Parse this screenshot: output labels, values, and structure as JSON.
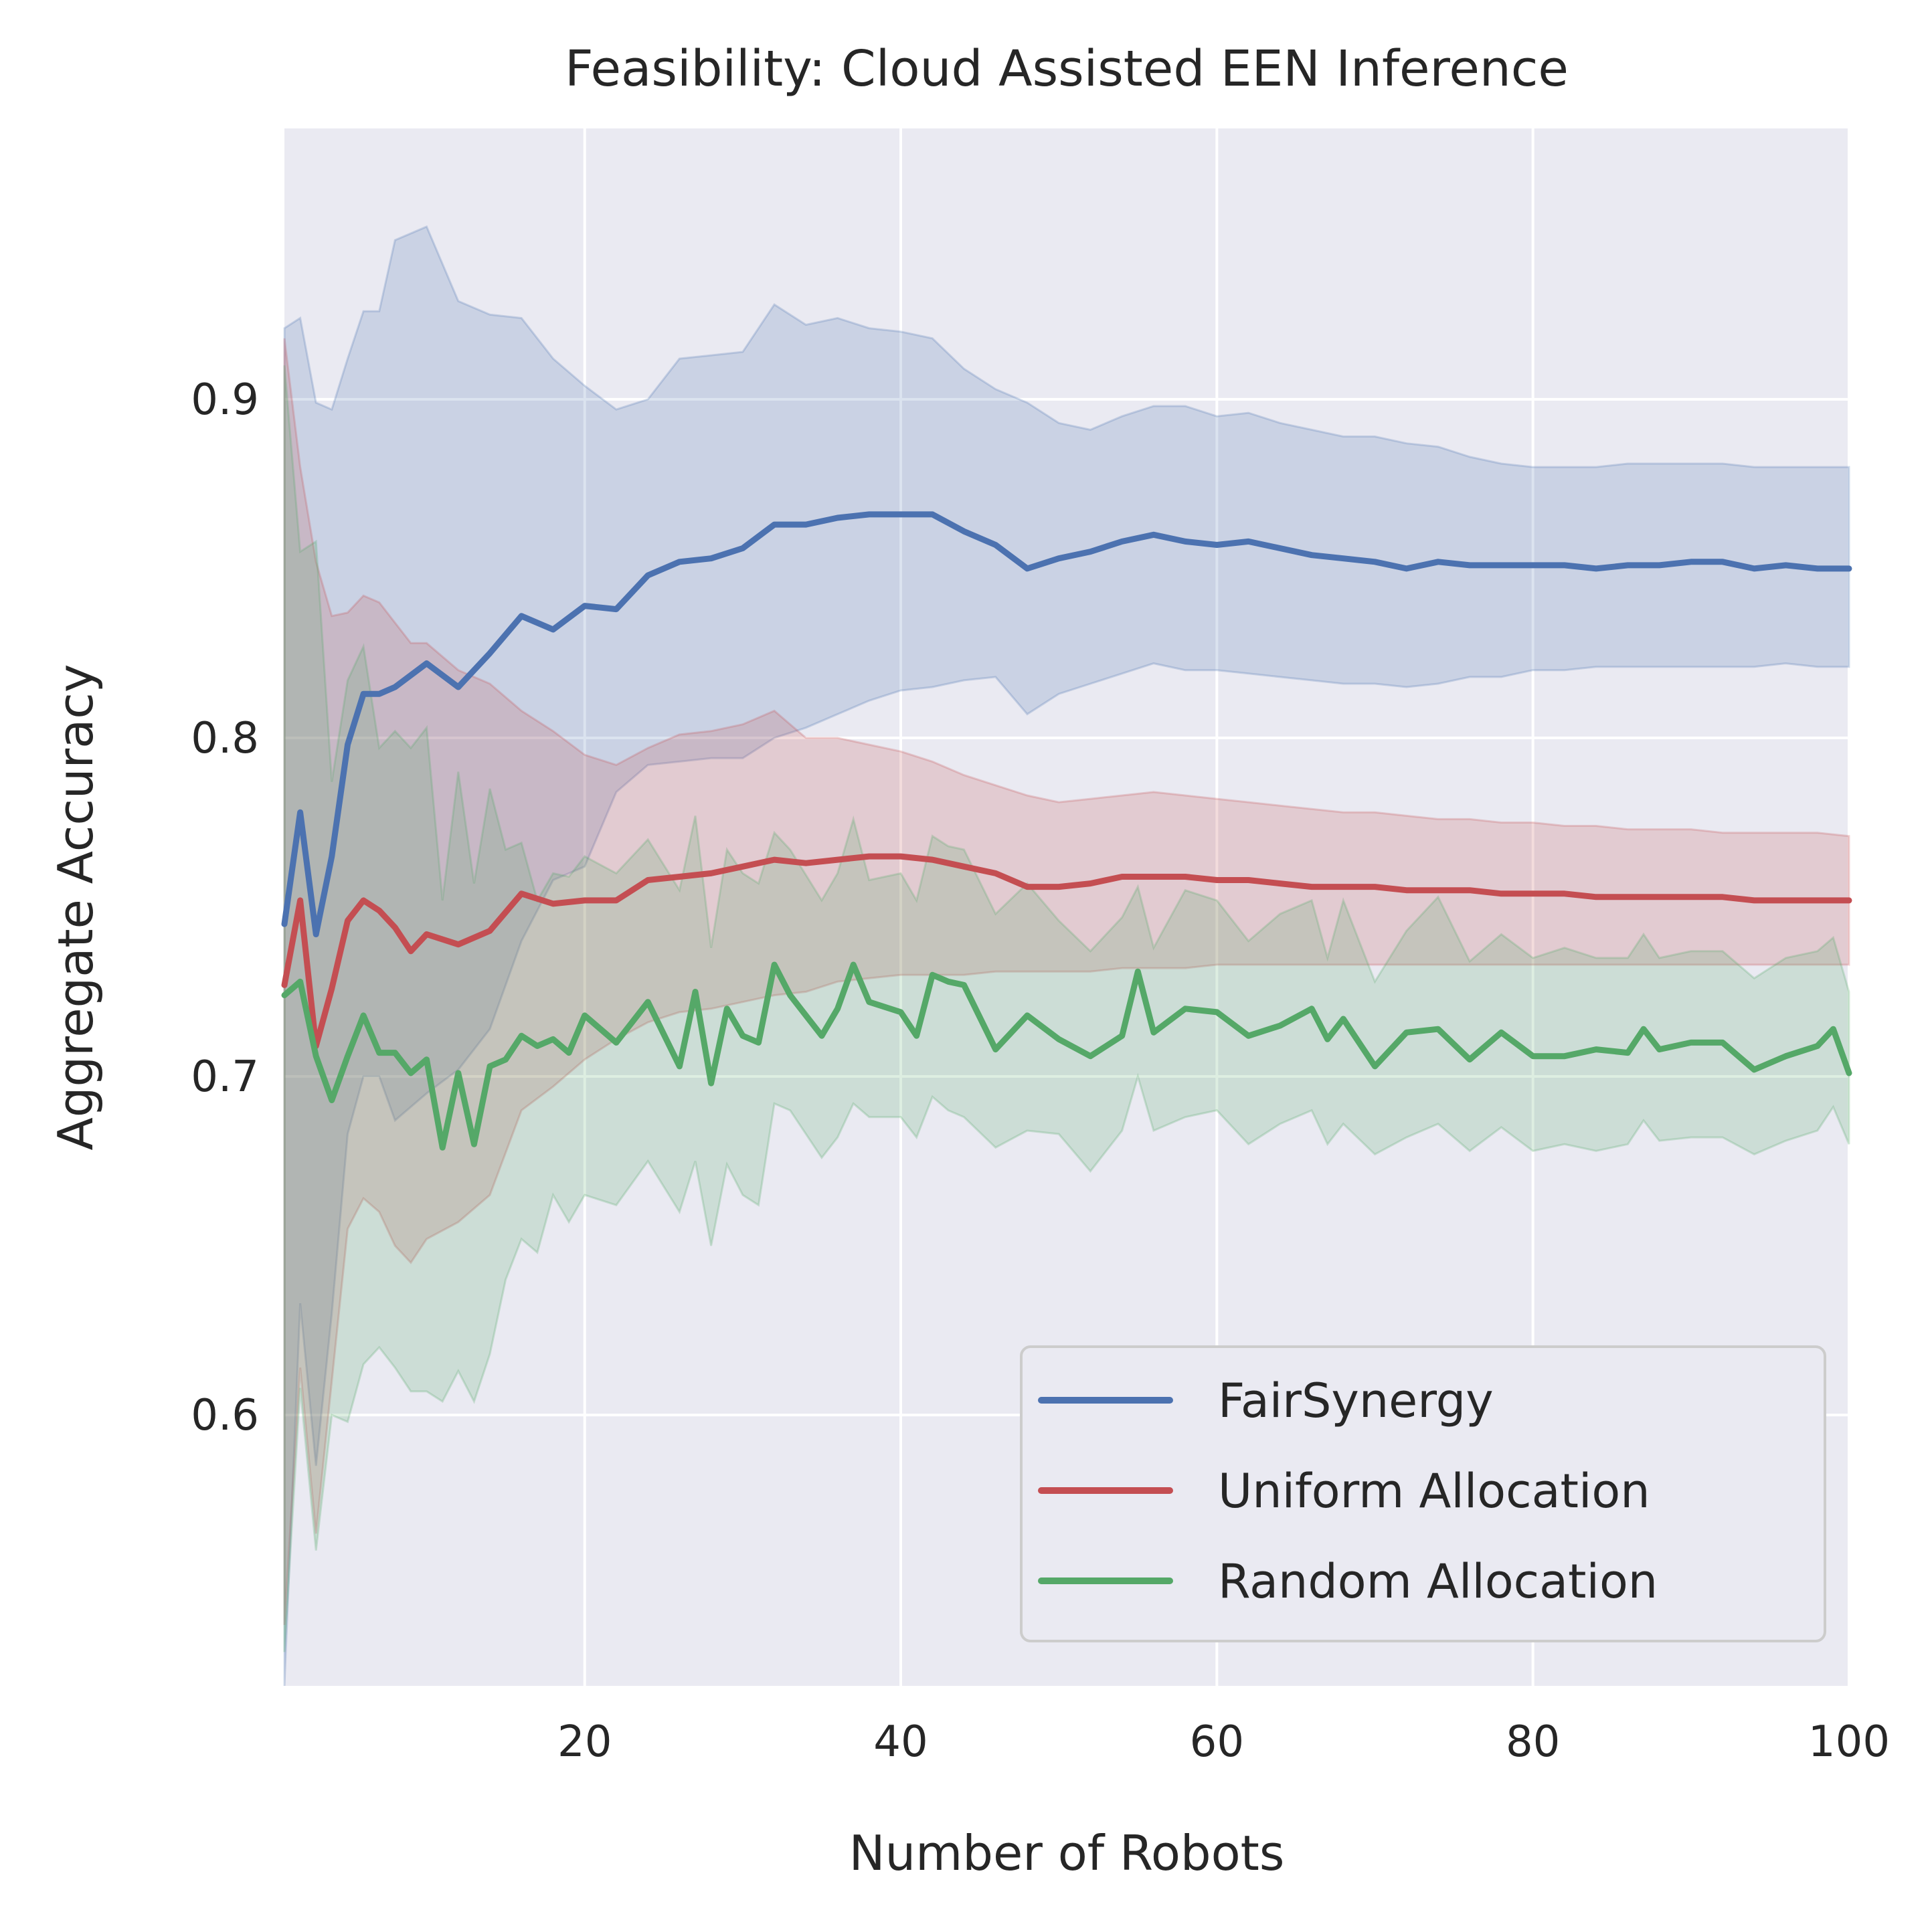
{
  "chart_data": {
    "type": "line",
    "title": "Feasibility: Cloud Assisted EEN Inference",
    "xlabel": "Number of Robots",
    "ylabel": "Aggregate Accuracy",
    "xlim": [
      1,
      100
    ],
    "ylim": [
      0.52,
      0.98
    ],
    "xticks": [
      20,
      40,
      60,
      80,
      100
    ],
    "yticks": [
      0.6,
      0.7,
      0.8,
      0.9
    ],
    "grid": true,
    "background_color": "#eaeaf2",
    "legend_position": "lower-right",
    "series": [
      {
        "name": "FairSynergy",
        "color": "#4c72b0",
        "x": [
          1,
          2,
          3,
          4,
          5,
          6,
          7,
          8,
          10,
          12,
          14,
          16,
          18,
          20,
          22,
          24,
          26,
          28,
          30,
          32,
          34,
          36,
          38,
          40,
          42,
          44,
          46,
          48,
          50,
          52,
          54,
          56,
          58,
          60,
          62,
          64,
          66,
          68,
          70,
          72,
          74,
          76,
          78,
          80,
          82,
          84,
          86,
          88,
          90,
          92,
          94,
          96,
          98,
          100
        ],
        "mean": [
          0.745,
          0.778,
          0.742,
          0.765,
          0.798,
          0.813,
          0.813,
          0.815,
          0.822,
          0.815,
          0.825,
          0.836,
          0.832,
          0.839,
          0.838,
          0.848,
          0.852,
          0.853,
          0.856,
          0.863,
          0.863,
          0.865,
          0.866,
          0.866,
          0.866,
          0.861,
          0.857,
          0.85,
          0.853,
          0.855,
          0.858,
          0.86,
          0.858,
          0.857,
          0.858,
          0.856,
          0.854,
          0.853,
          0.852,
          0.85,
          0.852,
          0.851,
          0.851,
          0.851,
          0.851,
          0.85,
          0.851,
          0.851,
          0.852,
          0.852,
          0.85,
          0.851,
          0.85,
          0.85
        ],
        "upper": [
          0.921,
          0.924,
          0.899,
          0.897,
          0.912,
          0.926,
          0.926,
          0.947,
          0.951,
          0.929,
          0.925,
          0.924,
          0.912,
          0.904,
          0.897,
          0.9,
          0.912,
          0.913,
          0.914,
          0.928,
          0.922,
          0.924,
          0.921,
          0.92,
          0.918,
          0.909,
          0.903,
          0.899,
          0.893,
          0.891,
          0.895,
          0.898,
          0.898,
          0.895,
          0.896,
          0.893,
          0.891,
          0.889,
          0.889,
          0.887,
          0.886,
          0.883,
          0.881,
          0.88,
          0.88,
          0.88,
          0.881,
          0.881,
          0.881,
          0.881,
          0.88,
          0.88,
          0.88,
          0.88
        ],
        "lower": [
          0.52,
          0.633,
          0.585,
          0.63,
          0.683,
          0.7,
          0.7,
          0.687,
          0.695,
          0.702,
          0.714,
          0.74,
          0.758,
          0.762,
          0.784,
          0.792,
          0.793,
          0.794,
          0.794,
          0.8,
          0.803,
          0.807,
          0.811,
          0.814,
          0.815,
          0.817,
          0.818,
          0.807,
          0.813,
          0.816,
          0.819,
          0.822,
          0.82,
          0.82,
          0.819,
          0.818,
          0.817,
          0.816,
          0.816,
          0.815,
          0.816,
          0.818,
          0.818,
          0.82,
          0.82,
          0.821,
          0.821,
          0.821,
          0.821,
          0.821,
          0.821,
          0.822,
          0.821,
          0.821
        ]
      },
      {
        "name": "Uniform Allocation",
        "color": "#c44e52",
        "x": [
          1,
          2,
          3,
          4,
          5,
          6,
          7,
          8,
          9,
          10,
          12,
          14,
          16,
          18,
          20,
          22,
          24,
          26,
          28,
          30,
          32,
          34,
          36,
          38,
          40,
          42,
          44,
          46,
          48,
          50,
          52,
          54,
          56,
          58,
          60,
          62,
          64,
          66,
          68,
          70,
          72,
          74,
          76,
          78,
          80,
          82,
          84,
          86,
          88,
          90,
          92,
          94,
          96,
          98,
          100
        ],
        "mean": [
          0.727,
          0.752,
          0.709,
          0.726,
          0.746,
          0.752,
          0.749,
          0.744,
          0.737,
          0.742,
          0.739,
          0.743,
          0.754,
          0.751,
          0.752,
          0.752,
          0.758,
          0.759,
          0.76,
          0.762,
          0.764,
          0.763,
          0.764,
          0.765,
          0.765,
          0.764,
          0.762,
          0.76,
          0.756,
          0.756,
          0.757,
          0.759,
          0.759,
          0.759,
          0.758,
          0.758,
          0.757,
          0.756,
          0.756,
          0.756,
          0.755,
          0.755,
          0.755,
          0.754,
          0.754,
          0.754,
          0.753,
          0.753,
          0.753,
          0.753,
          0.753,
          0.752,
          0.752,
          0.752,
          0.752
        ],
        "upper": [
          0.918,
          0.88,
          0.852,
          0.836,
          0.837,
          0.842,
          0.84,
          0.834,
          0.828,
          0.828,
          0.82,
          0.816,
          0.808,
          0.802,
          0.795,
          0.792,
          0.797,
          0.801,
          0.802,
          0.804,
          0.808,
          0.8,
          0.8,
          0.798,
          0.796,
          0.793,
          0.789,
          0.786,
          0.783,
          0.781,
          0.782,
          0.783,
          0.784,
          0.783,
          0.782,
          0.781,
          0.78,
          0.779,
          0.778,
          0.778,
          0.777,
          0.776,
          0.776,
          0.775,
          0.775,
          0.774,
          0.774,
          0.773,
          0.773,
          0.773,
          0.772,
          0.772,
          0.772,
          0.772,
          0.771
        ],
        "lower": [
          0.538,
          0.614,
          0.565,
          0.61,
          0.655,
          0.664,
          0.66,
          0.65,
          0.645,
          0.652,
          0.657,
          0.665,
          0.69,
          0.697,
          0.705,
          0.711,
          0.716,
          0.719,
          0.72,
          0.722,
          0.724,
          0.725,
          0.728,
          0.729,
          0.73,
          0.73,
          0.73,
          0.731,
          0.731,
          0.731,
          0.731,
          0.732,
          0.732,
          0.732,
          0.733,
          0.733,
          0.733,
          0.733,
          0.733,
          0.733,
          0.733,
          0.733,
          0.733,
          0.733,
          0.733,
          0.733,
          0.733,
          0.733,
          0.733,
          0.733,
          0.733,
          0.733,
          0.733,
          0.733,
          0.733
        ]
      },
      {
        "name": "Random Allocation",
        "color": "#55a868",
        "x": [
          1,
          2,
          3,
          4,
          5,
          6,
          7,
          8,
          9,
          10,
          11,
          12,
          13,
          14,
          15,
          16,
          17,
          18,
          19,
          20,
          22,
          24,
          26,
          27,
          28,
          29,
          30,
          31,
          32,
          33,
          35,
          36,
          37,
          38,
          40,
          41,
          42,
          43,
          44,
          46,
          48,
          50,
          52,
          54,
          55,
          56,
          58,
          60,
          62,
          64,
          66,
          67,
          68,
          70,
          72,
          74,
          76,
          78,
          80,
          82,
          84,
          86,
          87,
          88,
          90,
          92,
          94,
          96,
          98,
          99,
          100
        ],
        "mean": [
          0.724,
          0.728,
          0.706,
          0.693,
          0.706,
          0.718,
          0.707,
          0.707,
          0.701,
          0.705,
          0.679,
          0.701,
          0.68,
          0.703,
          0.705,
          0.712,
          0.709,
          0.711,
          0.707,
          0.718,
          0.71,
          0.722,
          0.703,
          0.725,
          0.698,
          0.72,
          0.712,
          0.71,
          0.733,
          0.724,
          0.712,
          0.72,
          0.733,
          0.722,
          0.719,
          0.712,
          0.73,
          0.728,
          0.727,
          0.708,
          0.718,
          0.711,
          0.706,
          0.712,
          0.731,
          0.713,
          0.72,
          0.719,
          0.712,
          0.715,
          0.72,
          0.711,
          0.717,
          0.703,
          0.713,
          0.714,
          0.705,
          0.713,
          0.706,
          0.706,
          0.708,
          0.707,
          0.714,
          0.708,
          0.71,
          0.71,
          0.702,
          0.706,
          0.709,
          0.714,
          0.701
        ],
        "upper": [
          0.91,
          0.855,
          0.858,
          0.787,
          0.817,
          0.827,
          0.797,
          0.802,
          0.797,
          0.803,
          0.752,
          0.79,
          0.757,
          0.785,
          0.767,
          0.769,
          0.752,
          0.76,
          0.759,
          0.765,
          0.76,
          0.77,
          0.755,
          0.777,
          0.738,
          0.767,
          0.76,
          0.757,
          0.772,
          0.767,
          0.752,
          0.76,
          0.776,
          0.758,
          0.76,
          0.752,
          0.771,
          0.768,
          0.767,
          0.748,
          0.757,
          0.746,
          0.737,
          0.747,
          0.756,
          0.738,
          0.755,
          0.752,
          0.74,
          0.748,
          0.752,
          0.735,
          0.752,
          0.728,
          0.743,
          0.753,
          0.734,
          0.742,
          0.735,
          0.738,
          0.735,
          0.735,
          0.742,
          0.735,
          0.737,
          0.737,
          0.729,
          0.735,
          0.737,
          0.741,
          0.725
        ],
        "lower": [
          0.53,
          0.608,
          0.56,
          0.6,
          0.598,
          0.615,
          0.62,
          0.614,
          0.607,
          0.607,
          0.604,
          0.613,
          0.604,
          0.618,
          0.64,
          0.652,
          0.648,
          0.665,
          0.657,
          0.665,
          0.662,
          0.675,
          0.66,
          0.675,
          0.65,
          0.674,
          0.665,
          0.662,
          0.692,
          0.69,
          0.676,
          0.682,
          0.692,
          0.688,
          0.688,
          0.682,
          0.694,
          0.69,
          0.688,
          0.679,
          0.684,
          0.683,
          0.672,
          0.684,
          0.7,
          0.684,
          0.688,
          0.69,
          0.68,
          0.686,
          0.69,
          0.68,
          0.686,
          0.677,
          0.682,
          0.686,
          0.678,
          0.685,
          0.678,
          0.68,
          0.678,
          0.68,
          0.687,
          0.681,
          0.682,
          0.682,
          0.677,
          0.681,
          0.684,
          0.691,
          0.68
        ]
      }
    ]
  }
}
